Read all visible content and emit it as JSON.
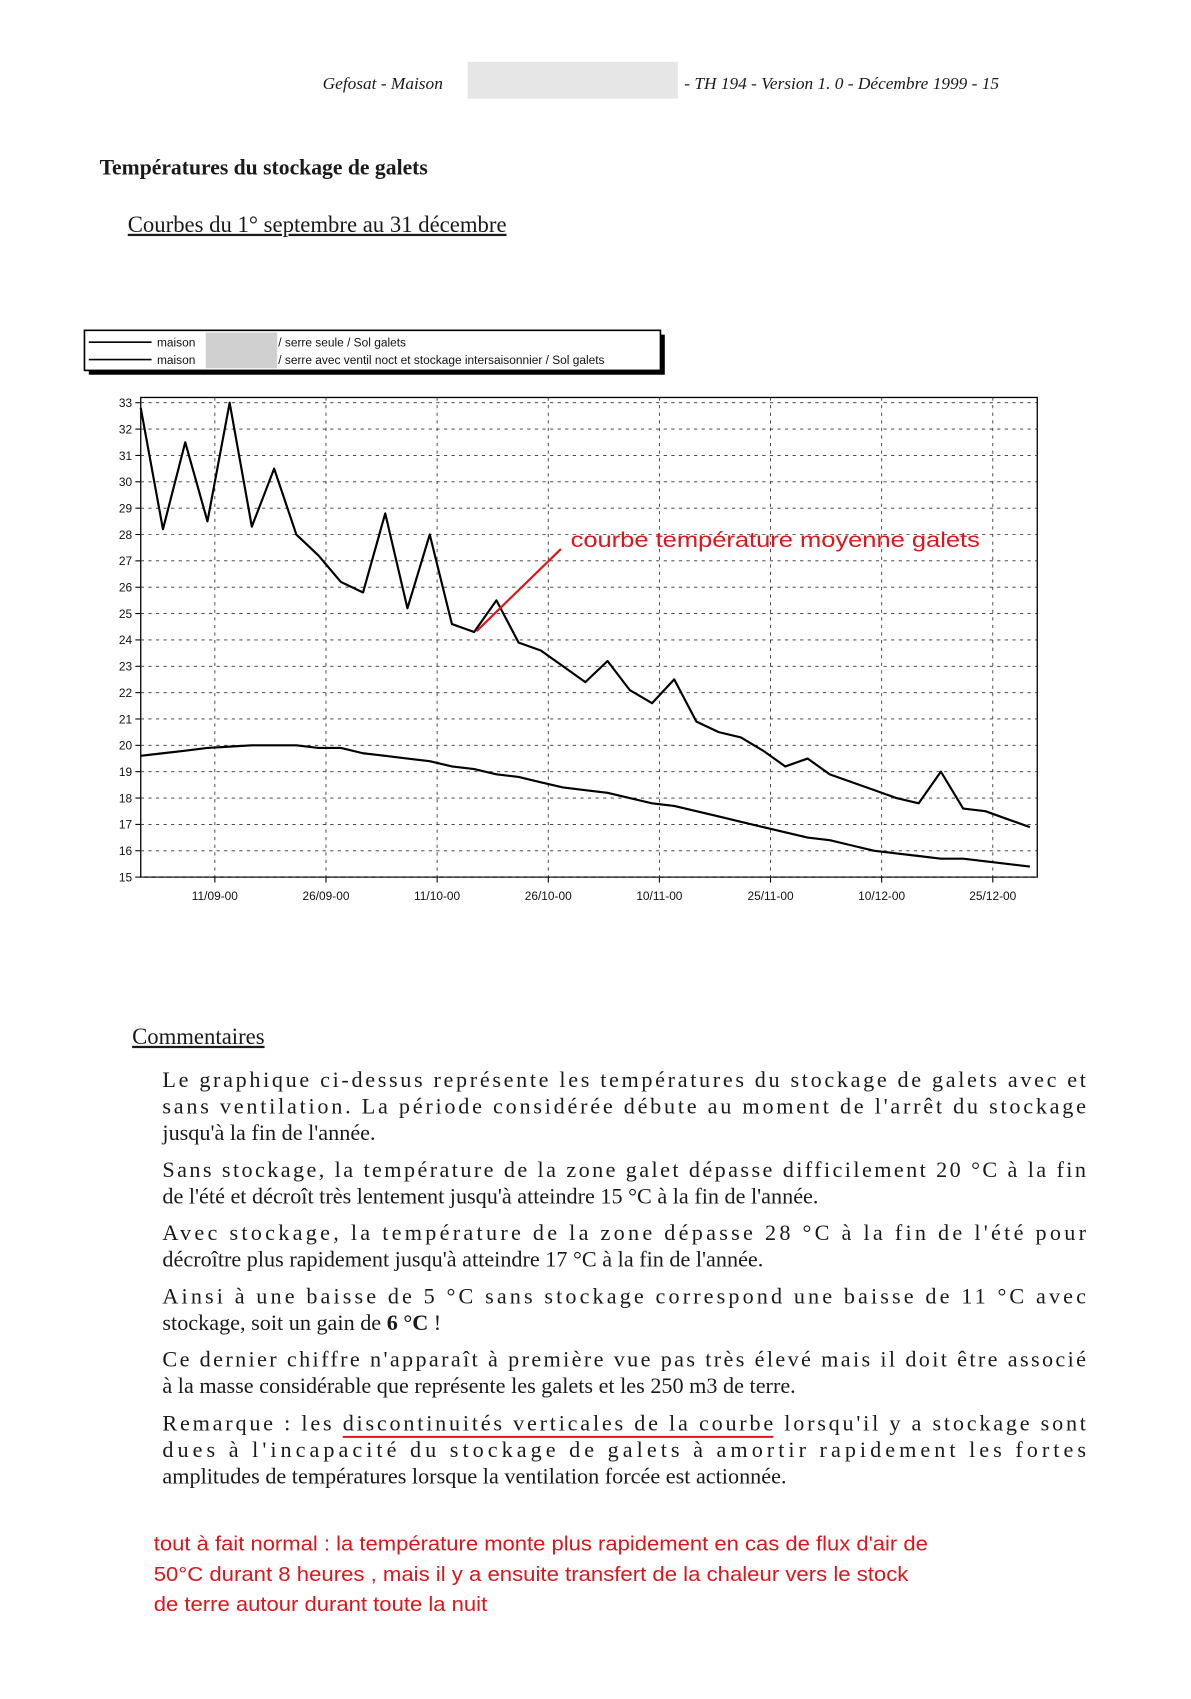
{
  "header": {
    "left": "Gefosat - Maison",
    "right": "- TH 194 - Version 1. 0 - Décembre 1999 - 15"
  },
  "section_title": "Températures du stockage de galets",
  "chart_heading": "Courbes du 1° septembre au 31 décembre",
  "chart_data": {
    "type": "line",
    "legend_prefix": "maison",
    "annotation": "courbe température moyenne galets",
    "x": [
      "2000-09-01",
      "2000-09-04",
      "2000-09-07",
      "2000-09-10",
      "2000-09-13",
      "2000-09-16",
      "2000-09-19",
      "2000-09-22",
      "2000-09-25",
      "2000-09-28",
      "2000-10-01",
      "2000-10-04",
      "2000-10-07",
      "2000-10-10",
      "2000-10-13",
      "2000-10-16",
      "2000-10-19",
      "2000-10-22",
      "2000-10-25",
      "2000-10-28",
      "2000-10-31",
      "2000-11-03",
      "2000-11-06",
      "2000-11-09",
      "2000-11-12",
      "2000-11-15",
      "2000-11-18",
      "2000-11-21",
      "2000-11-24",
      "2000-11-27",
      "2000-11-30",
      "2000-12-03",
      "2000-12-06",
      "2000-12-09",
      "2000-12-12",
      "2000-12-15",
      "2000-12-18",
      "2000-12-21",
      "2000-12-24",
      "2000-12-27",
      "2000-12-30"
    ],
    "series": [
      {
        "name": "/ serre seule / Sol galets",
        "color": "#000000",
        "values": [
          19.6,
          19.7,
          19.8,
          19.9,
          19.95,
          20.0,
          20.0,
          20.0,
          19.9,
          19.9,
          19.7,
          19.6,
          19.5,
          19.4,
          19.2,
          19.1,
          18.9,
          18.8,
          18.6,
          18.4,
          18.3,
          18.2,
          18.0,
          17.8,
          17.7,
          17.5,
          17.3,
          17.1,
          16.9,
          16.7,
          16.5,
          16.4,
          16.2,
          16.0,
          15.9,
          15.8,
          15.7,
          15.7,
          15.6,
          15.5,
          15.4
        ]
      },
      {
        "name": "/ serre avec ventil noct et stockage intersaisonnier / Sol galets",
        "color": "#000000",
        "values": [
          32.8,
          28.2,
          31.5,
          28.5,
          33.0,
          28.3,
          30.5,
          28.0,
          27.2,
          26.2,
          25.8,
          28.8,
          25.2,
          28.0,
          24.6,
          24.3,
          25.5,
          23.9,
          23.6,
          23.0,
          22.4,
          23.2,
          22.1,
          21.6,
          22.5,
          20.9,
          20.5,
          20.3,
          19.8,
          19.2,
          19.5,
          18.9,
          18.6,
          18.3,
          18.0,
          17.8,
          19.0,
          17.6,
          17.5,
          17.2,
          16.9
        ]
      }
    ],
    "xlim": [
      "2000-09-01",
      "2000-12-31"
    ],
    "xticks": [
      {
        "value": "2000-09-11",
        "label": "11/09-00"
      },
      {
        "value": "2000-09-26",
        "label": "26/09-00"
      },
      {
        "value": "2000-10-11",
        "label": "11/10-00"
      },
      {
        "value": "2000-10-26",
        "label": "26/10-00"
      },
      {
        "value": "2000-11-10",
        "label": "10/11-00"
      },
      {
        "value": "2000-11-25",
        "label": "25/11-00"
      },
      {
        "value": "2000-12-10",
        "label": "10/12-00"
      },
      {
        "value": "2000-12-25",
        "label": "25/12-00"
      }
    ],
    "ylim": [
      15,
      33.2
    ],
    "yticks": [
      15,
      16,
      17,
      18,
      19,
      20,
      21,
      22,
      23,
      24,
      25,
      26,
      27,
      28,
      29,
      30,
      31,
      32,
      33
    ],
    "grid": true
  },
  "comments": {
    "title": "Commentaires",
    "paragraphs": [
      [
        "Le graphique ci-dessus représente les températures du stockage de galets avec et",
        "sans ventilation. La période considérée débute au moment de l'arrêt du stockage",
        "jusqu'à la fin de l'année."
      ],
      [
        "Sans stockage, la température de la zone galet dépasse difficilement 20 °C à la fin",
        "de l'été et décroît très lentement jusqu'à atteindre 15 °C à la fin de l'année."
      ],
      [
        "Avec stockage, la température de la zone dépasse 28 °C à la fin de l'été pour",
        "décroître plus rapidement jusqu'à atteindre 17 °C à la fin de l'année."
      ],
      [
        "Ainsi à une baisse de 5 °C sans stockage correspond une baisse de 11 °C avec",
        [
          {
            "text": "stockage, soit un gain de "
          },
          {
            "text": "6 °C",
            "emphasis": "bold"
          },
          {
            "text": " !"
          }
        ]
      ],
      [
        "Ce dernier chiffre n'apparaît à première vue pas très élevé mais il doit être associé",
        "à la masse considérable que représente les galets et les 250 m3 de terre."
      ],
      [
        [
          {
            "text": "Remarque : les "
          },
          {
            "text": "discontinuités verticales de la courbe",
            "emphasis": "underline"
          },
          {
            "text": " lorsqu'il y a stockage sont"
          }
        ],
        "dues à l'incapacité du stockage de galets à amortir rapidement les fortes",
        "amplitudes de températures lorsque la ventilation forcée est actionnée."
      ]
    ]
  },
  "note": [
    "tout à fait normal : la température monte plus rapidement en cas de flux d'air de",
    "50°C durant 8 heures , mais il y a ensuite transfert de la chaleur vers le stock",
    "de terre autour durant toute la nuit"
  ]
}
